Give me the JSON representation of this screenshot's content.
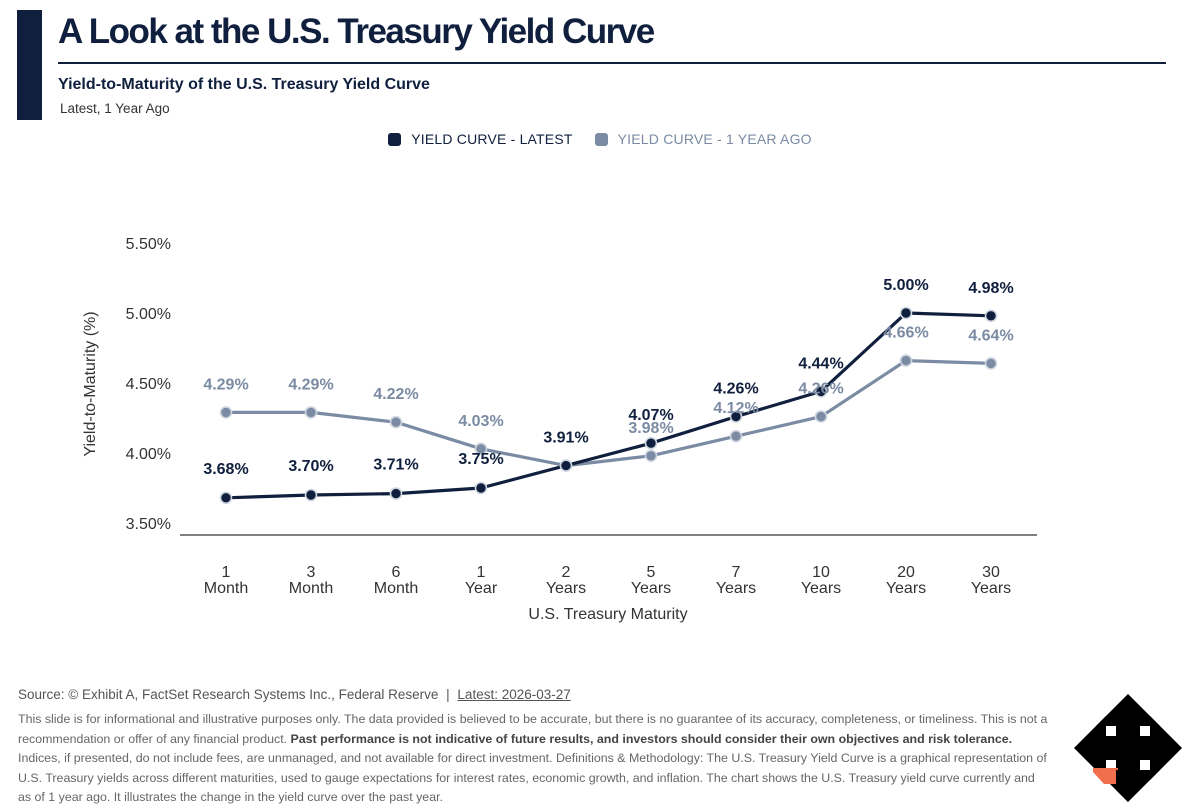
{
  "header": {
    "title": "A Look at the U.S. Treasury Yield Curve",
    "subtitle": "Yield-to-Maturity of the U.S. Treasury Yield Curve",
    "subnote": "Latest, 1 Year Ago"
  },
  "legend": {
    "latest_label": "YIELD CURVE - LATEST",
    "ago_label": "YIELD CURVE - 1 YEAR AGO"
  },
  "colors": {
    "latest": "#0f1f3d",
    "ago": "#7a8ba3",
    "accent": "#0f1f3d",
    "logo_orange": "#f26f4e"
  },
  "chart_data": {
    "type": "line",
    "categories": [
      [
        "1",
        "Month"
      ],
      [
        "3",
        "Month"
      ],
      [
        "6",
        "Month"
      ],
      [
        "1",
        "Year"
      ],
      [
        "2",
        "Years"
      ],
      [
        "5",
        "Years"
      ],
      [
        "7",
        "Years"
      ],
      [
        "10",
        "Years"
      ],
      [
        "20",
        "Years"
      ],
      [
        "30",
        "Years"
      ]
    ],
    "series": [
      {
        "name": "YIELD CURVE - LATEST",
        "values": [
          3.68,
          3.7,
          3.71,
          3.75,
          3.91,
          4.07,
          4.26,
          4.44,
          5.0,
          4.98
        ]
      },
      {
        "name": "YIELD CURVE - 1 YEAR AGO",
        "values": [
          4.29,
          4.29,
          4.22,
          4.03,
          3.91,
          3.98,
          4.12,
          4.26,
          4.66,
          4.64
        ]
      }
    ],
    "data_labels": {
      "latest": [
        "3.68%",
        "3.70%",
        "3.71%",
        "3.75%",
        "3.91%",
        "4.07%",
        "4.26%",
        "4.44%",
        "5.00%",
        "4.98%"
      ],
      "ago": [
        "4.29%",
        "4.29%",
        "4.22%",
        "4.03%",
        "",
        "3.98%",
        "4.12%",
        "4.26%",
        "4.66%",
        "4.64%"
      ]
    },
    "xlabel": "U.S. Treasury Maturity",
    "ylabel": "Yield-to-Maturity (%)",
    "ylim": [
      3.5,
      5.5
    ],
    "yticks": [
      3.5,
      4.0,
      4.5,
      5.0,
      5.5
    ],
    "ytick_labels": [
      "3.50%",
      "4.00%",
      "4.50%",
      "5.00%",
      "5.50%"
    ],
    "grid": false,
    "legend_position": "top-center"
  },
  "footer": {
    "source": "Source: © Exhibit A, FactSet Research Systems Inc., Federal Reserve",
    "separator": "|",
    "latest_date": "Latest: 2026-03-27",
    "disclaimer_1": "This slide is for informational and illustrative purposes only. The data provided is believed to be accurate, but there is no guarantee of its accuracy, completeness, or timeliness. This is not a recommendation or offer of any financial product. ",
    "disclaimer_bold": "Past performance is not indicative of future results, and investors should consider their own objectives and risk tolerance.",
    "disclaimer_2": " Indices, if presented, do not include fees, are unmanaged, and not available for direct investment. Definitions & Methodology: The U.S. Treasury Yield Curve is a graphical representation of U.S. Treasury yields across different maturities, used to gauge expectations for interest rates, economic growth, and inflation. The chart shows the U.S. Treasury yield curve currently and as of 1 year ago. It illustrates the change in the yield curve over the past year."
  },
  "logo": {
    "icon": "four-way-arrow-logo-icon"
  }
}
